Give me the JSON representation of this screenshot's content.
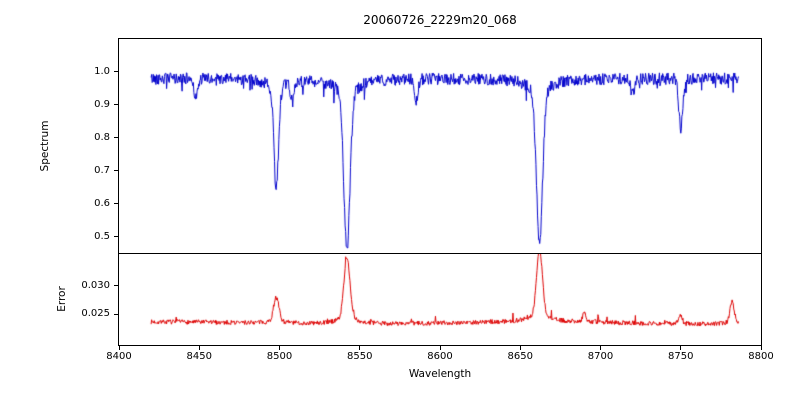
{
  "figure_title": "20060726_2229m20_068",
  "chart_data": [
    {
      "type": "line",
      "title": "20060726_2229m20_068",
      "xlabel": "Wavelength",
      "ylabel": "Spectrum",
      "legend": "off",
      "grid": "off",
      "color": "#0000cc",
      "xlim": [
        8400,
        8800
      ],
      "ylim": [
        0.45,
        1.1
      ],
      "ytick_values": [
        0.5,
        0.6,
        0.7,
        0.8,
        0.9,
        1.0
      ],
      "ytick_labels": [
        "0.5",
        "0.6",
        "0.7",
        "0.8",
        "0.9",
        "1.0"
      ],
      "x_start": 8420,
      "x_end": 8786,
      "continuum": 0.98,
      "noise_amplitude": 0.018,
      "seed": 42,
      "absorption_lines": [
        {
          "center": 8498,
          "depth": 0.29,
          "width": 1.4,
          "wing": 0.035
        },
        {
          "center": 8542,
          "depth": 0.47,
          "width": 1.9,
          "wing": 0.05
        },
        {
          "center": 8662,
          "depth": 0.45,
          "width": 1.9,
          "wing": 0.045
        }
      ],
      "minor_lines": [
        {
          "center": 8448,
          "depth": 0.06,
          "width": 1.1,
          "wing": 0
        },
        {
          "center": 8508,
          "depth": 0.06,
          "width": 1.1,
          "wing": 0
        },
        {
          "center": 8585,
          "depth": 0.07,
          "width": 1.1,
          "wing": 0
        },
        {
          "center": 8720,
          "depth": 0.05,
          "width": 1.1,
          "wing": 0
        },
        {
          "center": 8750,
          "depth": 0.15,
          "width": 1.2,
          "wing": 0
        }
      ]
    },
    {
      "type": "line",
      "title": "",
      "xlabel": "Wavelength",
      "ylabel": "Error",
      "legend": "off",
      "grid": "off",
      "color": "#dd0000",
      "xlim": [
        8400,
        8800
      ],
      "ylim": [
        0.0197,
        0.0355
      ],
      "ytick_values": [
        0.025,
        0.03
      ],
      "ytick_labels": [
        "0.025",
        "0.030"
      ],
      "xtick_values": [
        8400,
        8450,
        8500,
        8550,
        8600,
        8650,
        8700,
        8750,
        8800
      ],
      "xtick_labels": [
        "8400",
        "8450",
        "8500",
        "8550",
        "8600",
        "8650",
        "8700",
        "8750",
        "8800"
      ],
      "x_start": 8420,
      "x_end": 8786,
      "baseline": 0.0235,
      "noise_amplitude": 0.0004,
      "seed": 7,
      "peaks": [
        {
          "center": 8498,
          "height": 0.004,
          "width": 1.6
        },
        {
          "center": 8542,
          "height": 0.0105,
          "width": 1.8
        },
        {
          "center": 8662,
          "height": 0.0112,
          "width": 1.8
        },
        {
          "center": 8690,
          "height": 0.0015,
          "width": 1.0
        },
        {
          "center": 8750,
          "height": 0.0012,
          "width": 1.0
        },
        {
          "center": 8782,
          "height": 0.0035,
          "width": 1.3
        }
      ]
    }
  ]
}
